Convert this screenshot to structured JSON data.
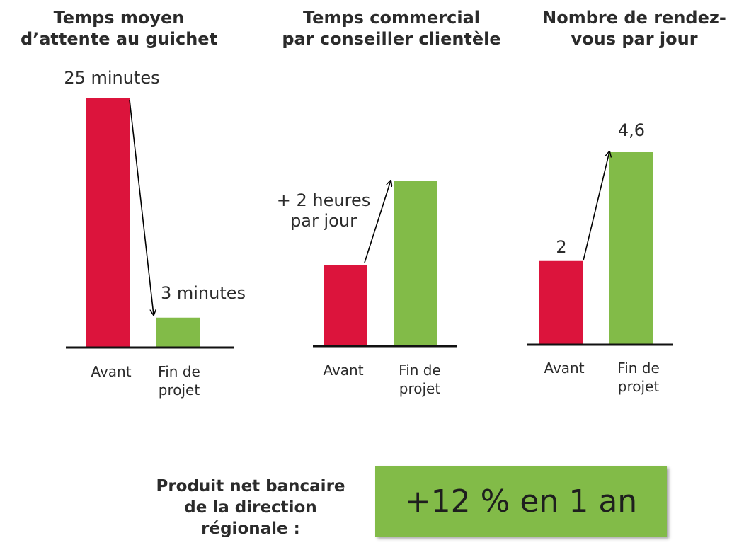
{
  "chart_data": [
    {
      "type": "bar",
      "title": [
        "Temps moyen",
        "d’attente au guichet"
      ],
      "categories": [
        [
          "Avant"
        ],
        [
          "Fin de",
          "projet"
        ]
      ],
      "values": [
        25,
        3
      ],
      "value_labels": [
        "25 minutes",
        "3 minutes"
      ],
      "unit": "minutes",
      "colors": [
        "#dc143c",
        "#82bb48"
      ],
      "ylim": [
        0,
        25
      ],
      "arrow": "from first bar to second bar (decrease)"
    },
    {
      "type": "bar",
      "title": [
        "Temps commercial",
        "par conseiller clientèle"
      ],
      "categories": [
        [
          "Avant"
        ],
        [
          "Fin de",
          "projet"
        ]
      ],
      "values": [
        null,
        null
      ],
      "annotation": [
        "+ 2 heures",
        "par jour"
      ],
      "colors": [
        "#dc143c",
        "#82bb48"
      ],
      "arrow": "from first bar to second bar (increase)"
    },
    {
      "type": "bar",
      "title": [
        "Nombre de rendez-",
        "vous par jour"
      ],
      "categories": [
        [
          "Avant"
        ],
        [
          "Fin de",
          "projet"
        ]
      ],
      "values": [
        2,
        4.6
      ],
      "value_labels": [
        "2",
        "4,6"
      ],
      "colors": [
        "#dc143c",
        "#82bb48"
      ],
      "ylim": [
        0,
        4.6
      ],
      "arrow": "from first bar to second bar (increase)"
    }
  ],
  "summary": {
    "label_lines": [
      "Produit net bancaire",
      "de la direction",
      "régionale :"
    ],
    "value": "+12 % en 1 an",
    "box_color": "#82bb48"
  }
}
